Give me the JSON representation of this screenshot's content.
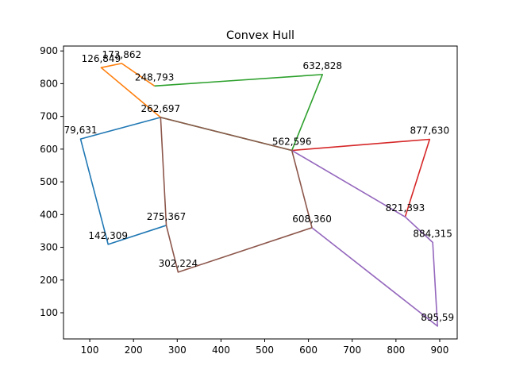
{
  "chart_data": {
    "type": "line",
    "title": "Convex Hull",
    "xlabel": "",
    "ylabel": "",
    "xlim": [
      40,
      940
    ],
    "ylim": [
      20,
      915
    ],
    "grid": false,
    "xticks": [
      100,
      200,
      300,
      400,
      500,
      600,
      700,
      800,
      900
    ],
    "yticks": [
      100,
      200,
      300,
      400,
      500,
      600,
      700,
      800,
      900
    ],
    "series": [
      {
        "color": "#1f77b4",
        "points": [
          [
            262,
            697
          ],
          [
            79,
            631
          ],
          [
            142,
            309
          ],
          [
            275,
            367
          ]
        ]
      },
      {
        "color": "#ff7f0e",
        "points": [
          [
            262,
            697
          ],
          [
            126,
            849
          ],
          [
            173,
            862
          ],
          [
            248,
            793
          ]
        ]
      },
      {
        "color": "#2ca02c",
        "points": [
          [
            248,
            793
          ],
          [
            632,
            828
          ],
          [
            562,
            596
          ],
          [
            262,
            697
          ]
        ]
      },
      {
        "color": "#d62728",
        "points": [
          [
            562,
            596
          ],
          [
            877,
            630
          ],
          [
            821,
            393
          ]
        ]
      },
      {
        "color": "#9467bd",
        "points": [
          [
            562,
            596
          ],
          [
            821,
            393
          ],
          [
            884,
            315
          ],
          [
            895,
            59
          ],
          [
            608,
            360
          ]
        ]
      },
      {
        "color": "#8c564b",
        "points": [
          [
            608,
            360
          ],
          [
            302,
            224
          ],
          [
            275,
            367
          ],
          [
            262,
            697
          ],
          [
            562,
            596
          ],
          [
            608,
            360
          ]
        ]
      }
    ],
    "point_labels": [
      {
        "x": 126,
        "y": 849,
        "text": "126,849"
      },
      {
        "x": 173,
        "y": 862,
        "text": "173,862"
      },
      {
        "x": 248,
        "y": 793,
        "text": "248,793"
      },
      {
        "x": 632,
        "y": 828,
        "text": "632,828"
      },
      {
        "x": 262,
        "y": 697,
        "text": "262,697"
      },
      {
        "x": 79,
        "y": 631,
        "text": "79,631"
      },
      {
        "x": 562,
        "y": 596,
        "text": "562,596"
      },
      {
        "x": 877,
        "y": 630,
        "text": "877,630"
      },
      {
        "x": 821,
        "y": 393,
        "text": "821,393"
      },
      {
        "x": 275,
        "y": 367,
        "text": "275,367"
      },
      {
        "x": 608,
        "y": 360,
        "text": "608,360"
      },
      {
        "x": 884,
        "y": 315,
        "text": "884,315"
      },
      {
        "x": 142,
        "y": 309,
        "text": "142,309"
      },
      {
        "x": 302,
        "y": 224,
        "text": "302,224"
      },
      {
        "x": 895,
        "y": 59,
        "text": "895,59"
      }
    ]
  }
}
